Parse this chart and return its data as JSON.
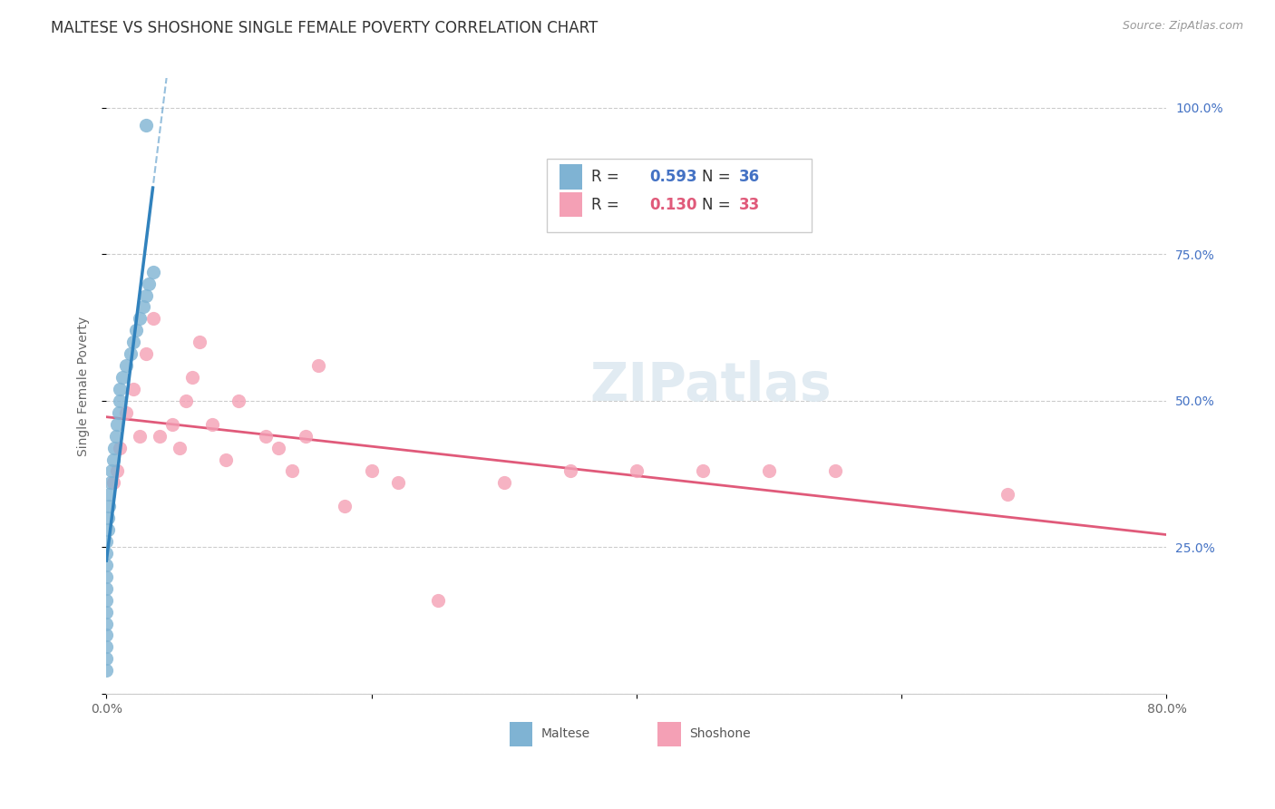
{
  "title": "MALTESE VS SHOSHONE SINGLE FEMALE POVERTY CORRELATION CHART",
  "source": "Source: ZipAtlas.com",
  "ylabel": "Single Female Poverty",
  "xlim": [
    0.0,
    0.8
  ],
  "ylim": [
    0.0,
    1.05
  ],
  "maltese_color": "#7fb3d3",
  "shoshone_color": "#f4a0b5",
  "maltese_R": 0.593,
  "maltese_N": 36,
  "shoshone_R": 0.13,
  "shoshone_N": 33,
  "maltese_scatter_x": [
    0.0,
    0.0,
    0.0,
    0.0,
    0.0,
    0.0,
    0.0,
    0.0,
    0.0,
    0.0,
    0.0,
    0.0,
    0.001,
    0.001,
    0.002,
    0.002,
    0.003,
    0.004,
    0.005,
    0.006,
    0.007,
    0.008,
    0.009,
    0.01,
    0.01,
    0.012,
    0.015,
    0.018,
    0.02,
    0.022,
    0.025,
    0.028,
    0.03,
    0.032,
    0.035,
    0.03
  ],
  "maltese_scatter_y": [
    0.04,
    0.06,
    0.08,
    0.1,
    0.12,
    0.14,
    0.16,
    0.18,
    0.2,
    0.22,
    0.24,
    0.26,
    0.28,
    0.3,
    0.32,
    0.34,
    0.36,
    0.38,
    0.4,
    0.42,
    0.44,
    0.46,
    0.48,
    0.5,
    0.52,
    0.54,
    0.56,
    0.58,
    0.6,
    0.62,
    0.64,
    0.66,
    0.68,
    0.7,
    0.72,
    0.97
  ],
  "shoshone_scatter_x": [
    0.005,
    0.008,
    0.01,
    0.015,
    0.02,
    0.025,
    0.03,
    0.035,
    0.04,
    0.05,
    0.055,
    0.06,
    0.065,
    0.07,
    0.08,
    0.09,
    0.1,
    0.12,
    0.13,
    0.14,
    0.15,
    0.16,
    0.18,
    0.2,
    0.22,
    0.25,
    0.3,
    0.35,
    0.4,
    0.45,
    0.5,
    0.55,
    0.68
  ],
  "shoshone_scatter_y": [
    0.36,
    0.38,
    0.42,
    0.48,
    0.52,
    0.44,
    0.58,
    0.64,
    0.44,
    0.46,
    0.42,
    0.5,
    0.54,
    0.6,
    0.46,
    0.4,
    0.5,
    0.44,
    0.42,
    0.38,
    0.44,
    0.56,
    0.32,
    0.38,
    0.36,
    0.16,
    0.36,
    0.38,
    0.38,
    0.38,
    0.38,
    0.38,
    0.34
  ],
  "maltese_line_color": "#3182bd",
  "shoshone_line_color": "#e05a7a",
  "background_color": "#ffffff",
  "grid_color": "#cccccc",
  "title_fontsize": 12,
  "axis_label_fontsize": 10,
  "tick_fontsize": 10,
  "legend_fontsize": 12
}
